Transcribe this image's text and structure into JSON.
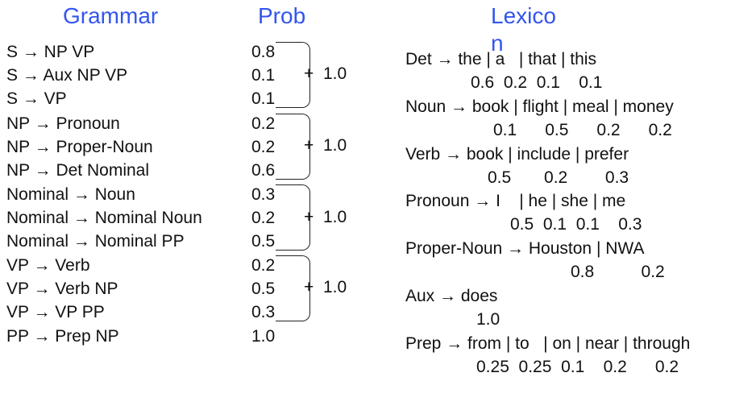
{
  "headers": {
    "grammar": "Grammar",
    "prob": "Prob",
    "lexicon_line1": "Lexico",
    "lexicon_line2": "n"
  },
  "grammar_rules": [
    {
      "rule": "S → NP VP",
      "prob": "0.8"
    },
    {
      "rule": "S → Aux NP VP",
      "prob": "0.1"
    },
    {
      "rule": "S → VP",
      "prob": "0.1"
    },
    {
      "rule": "NP → Pronoun",
      "prob": "0.2"
    },
    {
      "rule": "NP → Proper-Noun",
      "prob": "0.2"
    },
    {
      "rule": "NP → Det Nominal",
      "prob": "0.6"
    },
    {
      "rule": "Nominal → Noun",
      "prob": "0.3"
    },
    {
      "rule": "Nominal → Nominal Noun",
      "prob": "0.2"
    },
    {
      "rule": "Nominal → Nominal PP",
      "prob": "0.5"
    },
    {
      "rule": "VP → Verb",
      "prob": "0.2"
    },
    {
      "rule": "VP → Verb NP",
      "prob": "0.5"
    },
    {
      "rule": "VP → VP PP",
      "prob": "0.3"
    },
    {
      "rule": "PP → Prep NP",
      "prob": "1.0"
    }
  ],
  "brackets": [
    {
      "plus": "+",
      "sum": "1.0"
    },
    {
      "plus": "+",
      "sum": "1.0"
    },
    {
      "plus": "+",
      "sum": "1.0"
    },
    {
      "plus": "+",
      "sum": "1.0"
    }
  ],
  "lexicon": [
    {
      "rule": "Det → the | a   | that | this",
      "probs": "0.6  0.2  0.1    0.1"
    },
    {
      "rule": "Noun → book | flight | meal | money",
      "probs": "0.1      0.5      0.2      0.2"
    },
    {
      "rule": "Verb → book | include | prefer",
      "probs": "0.5       0.2        0.3"
    },
    {
      "rule": "Pronoun → I    | he | she | me",
      "probs": "0.5  0.1  0.1    0.3"
    },
    {
      "rule": "Proper-Noun → Houston | NWA",
      "probs": "0.8          0.2"
    },
    {
      "rule": "Aux → does",
      "probs": "1.0"
    },
    {
      "rule": "Prep → from | to   | on | near | through",
      "probs": "0.25  0.25  0.1    0.2      0.2"
    }
  ]
}
